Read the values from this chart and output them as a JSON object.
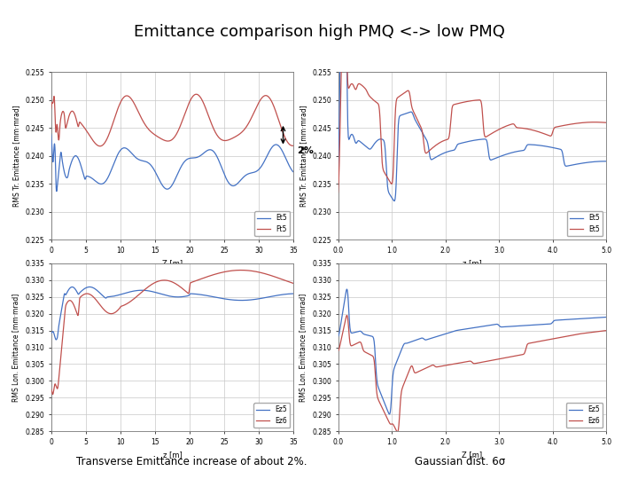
{
  "title": "Emittance comparison high PMQ <-> low PMQ",
  "subtitle_left": "Transverse Emittance increase of about 2%.",
  "subtitle_right": "Gaussian dist. 6σ",
  "bg_color": "#f0f0f0",
  "plot_bg": "#ffffff",
  "grid_color": "#c0c0c0",
  "blue_color": "#4472c4",
  "red_color": "#c0504d",
  "annotation_2pct": "2%",
  "tl_ylabel": "RMS Tr. Emittance [mm·mrad]",
  "tl_xlabel": "Z [m]",
  "tl_xlim": [
    0,
    35
  ],
  "tl_ylim": [
    0.225,
    0.255
  ],
  "tl_yticks": [
    0.225,
    0.23,
    0.235,
    0.24,
    0.245,
    0.25,
    0.255
  ],
  "tl_xticks": [
    0,
    5,
    10,
    15,
    20,
    25,
    30,
    35
  ],
  "tl_legend": [
    "Et5",
    "Ft5"
  ],
  "tr_ylabel": "RMS Tr. Emittance [mm·mrad]",
  "tr_xlabel": "z [m]",
  "tr_xlim": [
    0.0,
    5.0
  ],
  "tr_ylim": [
    0.225,
    0.255
  ],
  "tr_yticks": [
    0.225,
    0.23,
    0.235,
    0.24,
    0.245,
    0.25,
    0.255
  ],
  "tr_xticks": [
    0.0,
    1.0,
    2.0,
    3.0,
    4.0,
    5.0
  ],
  "tr_legend": [
    "Et5",
    "Et5"
  ],
  "bl_ylabel": "RMS Lon. Emittance [mm·mrad]",
  "bl_xlabel": "z [m]",
  "bl_xlim": [
    0,
    35
  ],
  "bl_ylim": [
    0.285,
    0.335
  ],
  "bl_yticks": [
    0.285,
    0.29,
    0.295,
    0.3,
    0.305,
    0.31,
    0.315,
    0.32,
    0.325,
    0.33,
    0.335
  ],
  "bl_xticks": [
    0,
    5,
    10,
    15,
    20,
    25,
    30,
    35
  ],
  "bl_legend": [
    "Ez5",
    "Ez6"
  ],
  "br_ylabel": "RMS Lon. Emittance [mm·mrad]",
  "br_xlabel": "Z [m]",
  "br_xlim": [
    0.0,
    5.0
  ],
  "br_ylim": [
    0.285,
    0.335
  ],
  "br_yticks": [
    0.285,
    0.29,
    0.295,
    0.3,
    0.305,
    0.31,
    0.315,
    0.32,
    0.325,
    0.33,
    0.335
  ],
  "br_xticks": [
    0.0,
    1.0,
    2.0,
    3.0,
    4.0,
    5.0
  ],
  "br_legend": [
    "Ez5",
    "Ez6"
  ]
}
